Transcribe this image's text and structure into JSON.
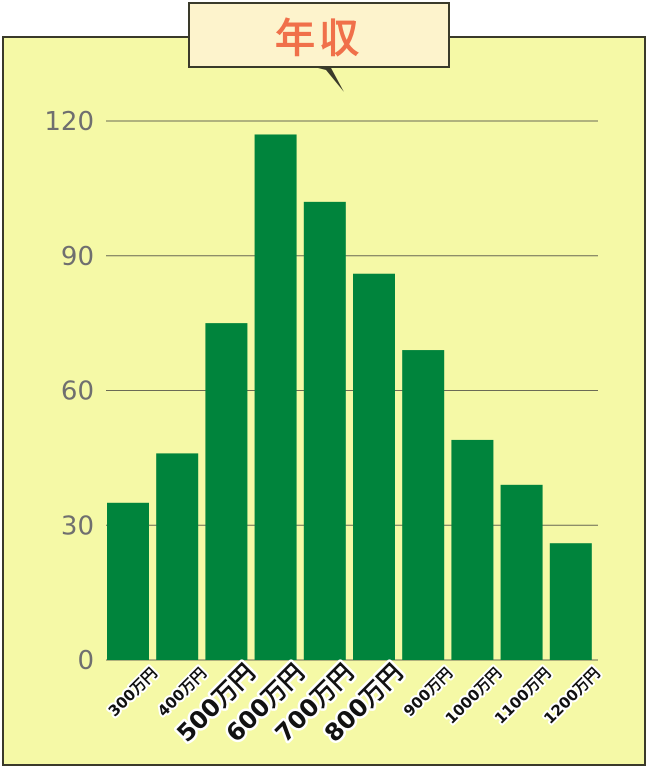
{
  "chart_data": {
    "type": "bar",
    "title": "年収",
    "categories": [
      "300万円",
      "400万円",
      "500万円",
      "600万円",
      "700万円",
      "800万円",
      "900万円",
      "1000万円",
      "1100万円",
      "1200万円"
    ],
    "emphasized": [
      "500万円",
      "600万円",
      "700万円",
      "800万円"
    ],
    "values": [
      35,
      46,
      75,
      117,
      102,
      86,
      69,
      49,
      39,
      26
    ],
    "yticks": [
      0,
      30,
      60,
      90,
      120
    ],
    "ylim": [
      0,
      120
    ],
    "grid": true,
    "colors": {
      "bar": "#00843c",
      "panel": "#f5f9a6",
      "title_box": "#fdf3cc",
      "title_text": "#f0704a",
      "tick_text": "#6f6f6f"
    }
  }
}
